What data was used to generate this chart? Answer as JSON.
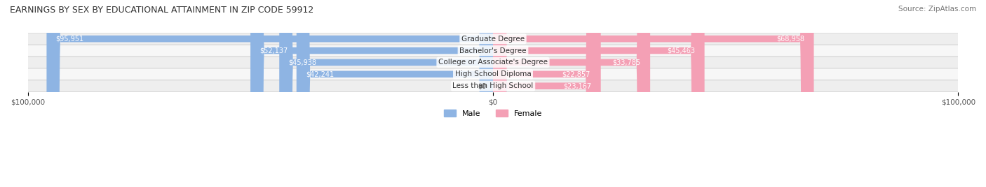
{
  "title": "EARNINGS BY SEX BY EDUCATIONAL ATTAINMENT IN ZIP CODE 59912",
  "source": "Source: ZipAtlas.com",
  "categories": [
    "Less than High School",
    "High School Diploma",
    "College or Associate's Degree",
    "Bachelor's Degree",
    "Graduate Degree"
  ],
  "male_values": [
    0,
    42241,
    45938,
    52137,
    95951
  ],
  "female_values": [
    23167,
    22857,
    33785,
    45463,
    68958
  ],
  "male_labels": [
    "$0",
    "$42,241",
    "$45,938",
    "$52,137",
    "$95,951"
  ],
  "female_labels": [
    "$23,167",
    "$22,857",
    "$33,785",
    "$45,463",
    "$68,958"
  ],
  "x_max": 100000,
  "male_color": "#8eb4e3",
  "female_color": "#f4a0b5",
  "male_label_color_default": "#555555",
  "male_label_color_inside": "#ffffff",
  "female_label_color_default": "#555555",
  "female_label_color_inside": "#ffffff",
  "row_bg_color": "#f0f0f0",
  "bar_height": 0.55,
  "background_color": "#ffffff",
  "x_tick_labels": [
    "$100,000",
    "",
    "",
    "",
    "",
    "$0",
    "",
    "",
    "",
    "",
    "$100,000"
  ],
  "legend_male": "Male",
  "legend_female": "Female"
}
